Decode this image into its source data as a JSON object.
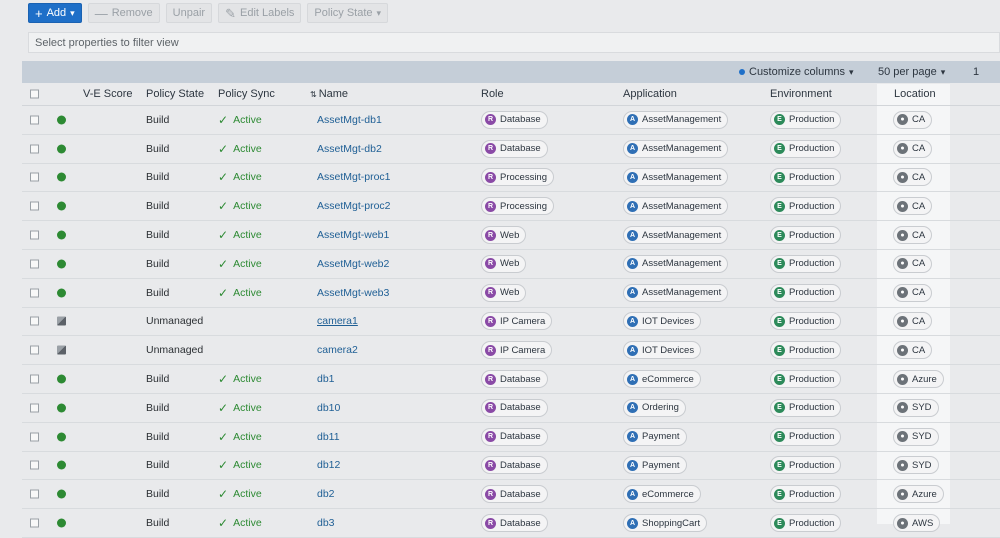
{
  "toolbar": {
    "add": "Add",
    "remove": "Remove",
    "unpair": "Unpair",
    "edit_labels": "Edit Labels",
    "policy_state": "Policy State"
  },
  "filter": {
    "placeholder": "Select properties to filter view"
  },
  "subbar": {
    "customize": "Customize columns",
    "per_page": "50 per page",
    "page": "1"
  },
  "columns": {
    "ve_score": "V-E Score",
    "policy_state": "Policy State",
    "policy_sync": "Policy Sync",
    "name": "Name",
    "role": "Role",
    "application": "Application",
    "environment": "Environment",
    "location": "Location"
  },
  "rows": [
    {
      "status": "managed",
      "state": "Build",
      "sync": "Active",
      "name": "AssetMgt-db1",
      "role": "Database",
      "app": "AssetManagement",
      "env": "Production",
      "loc": "CA"
    },
    {
      "status": "managed",
      "state": "Build",
      "sync": "Active",
      "name": "AssetMgt-db2",
      "role": "Database",
      "app": "AssetManagement",
      "env": "Production",
      "loc": "CA"
    },
    {
      "status": "managed",
      "state": "Build",
      "sync": "Active",
      "name": "AssetMgt-proc1",
      "role": "Processing",
      "app": "AssetManagement",
      "env": "Production",
      "loc": "CA"
    },
    {
      "status": "managed",
      "state": "Build",
      "sync": "Active",
      "name": "AssetMgt-proc2",
      "role": "Processing",
      "app": "AssetManagement",
      "env": "Production",
      "loc": "CA"
    },
    {
      "status": "managed",
      "state": "Build",
      "sync": "Active",
      "name": "AssetMgt-web1",
      "role": "Web",
      "app": "AssetManagement",
      "env": "Production",
      "loc": "CA"
    },
    {
      "status": "managed",
      "state": "Build",
      "sync": "Active",
      "name": "AssetMgt-web2",
      "role": "Web",
      "app": "AssetManagement",
      "env": "Production",
      "loc": "CA"
    },
    {
      "status": "managed",
      "state": "Build",
      "sync": "Active",
      "name": "AssetMgt-web3",
      "role": "Web",
      "app": "AssetManagement",
      "env": "Production",
      "loc": "CA"
    },
    {
      "status": "unmanaged",
      "state": "Unmanaged",
      "sync": "",
      "name": "camera1",
      "role": "IP Camera",
      "app": "IOT Devices",
      "env": "Production",
      "loc": "CA"
    },
    {
      "status": "unmanaged",
      "state": "Unmanaged",
      "sync": "",
      "name": "camera2",
      "role": "IP Camera",
      "app": "IOT Devices",
      "env": "Production",
      "loc": "CA"
    },
    {
      "status": "managed",
      "state": "Build",
      "sync": "Active",
      "name": "db1",
      "role": "Database",
      "app": "eCommerce",
      "env": "Production",
      "loc": "Azure"
    },
    {
      "status": "managed",
      "state": "Build",
      "sync": "Active",
      "name": "db10",
      "role": "Database",
      "app": "Ordering",
      "env": "Production",
      "loc": "SYD"
    },
    {
      "status": "managed",
      "state": "Build",
      "sync": "Active",
      "name": "db11",
      "role": "Database",
      "app": "Payment",
      "env": "Production",
      "loc": "SYD"
    },
    {
      "status": "managed",
      "state": "Build",
      "sync": "Active",
      "name": "db12",
      "role": "Database",
      "app": "Payment",
      "env": "Production",
      "loc": "SYD"
    },
    {
      "status": "managed",
      "state": "Build",
      "sync": "Active",
      "name": "db2",
      "role": "Database",
      "app": "eCommerce",
      "env": "Production",
      "loc": "Azure"
    },
    {
      "status": "managed",
      "state": "Build",
      "sync": "Active",
      "name": "db3",
      "role": "Database",
      "app": "ShoppingCart",
      "env": "Production",
      "loc": "AWS"
    }
  ]
}
